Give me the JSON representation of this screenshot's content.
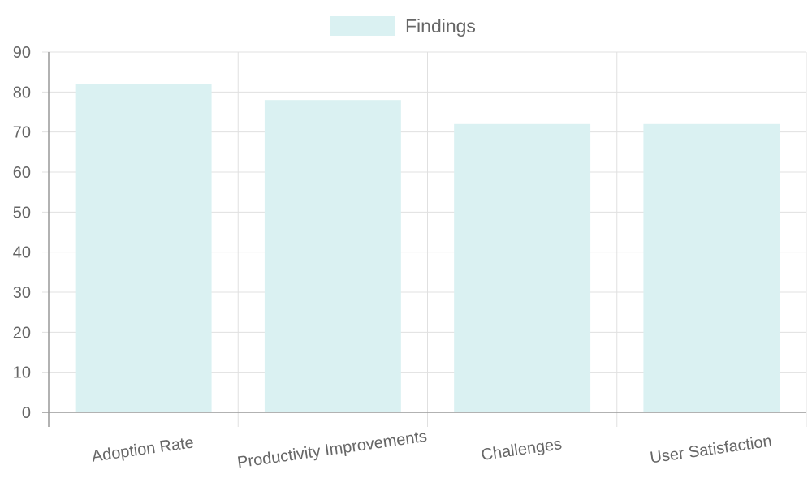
{
  "chart_data": {
    "type": "bar",
    "categories": [
      "Adoption Rate",
      "Productivity Improvements",
      "Challenges",
      "User Satisfaction"
    ],
    "series": [
      {
        "name": "Findings",
        "values": [
          82,
          78,
          72,
          72
        ]
      }
    ],
    "title": "",
    "xlabel": "",
    "ylabel": "",
    "ylim": [
      0,
      90
    ],
    "yticks": [
      0,
      10,
      20,
      30,
      40,
      50,
      60,
      70,
      80,
      90
    ],
    "grid": true,
    "legend_position": "top-center",
    "bar_color": "#daf1f2",
    "grid_color": "#e0e0e0",
    "text_color": "#666666"
  }
}
